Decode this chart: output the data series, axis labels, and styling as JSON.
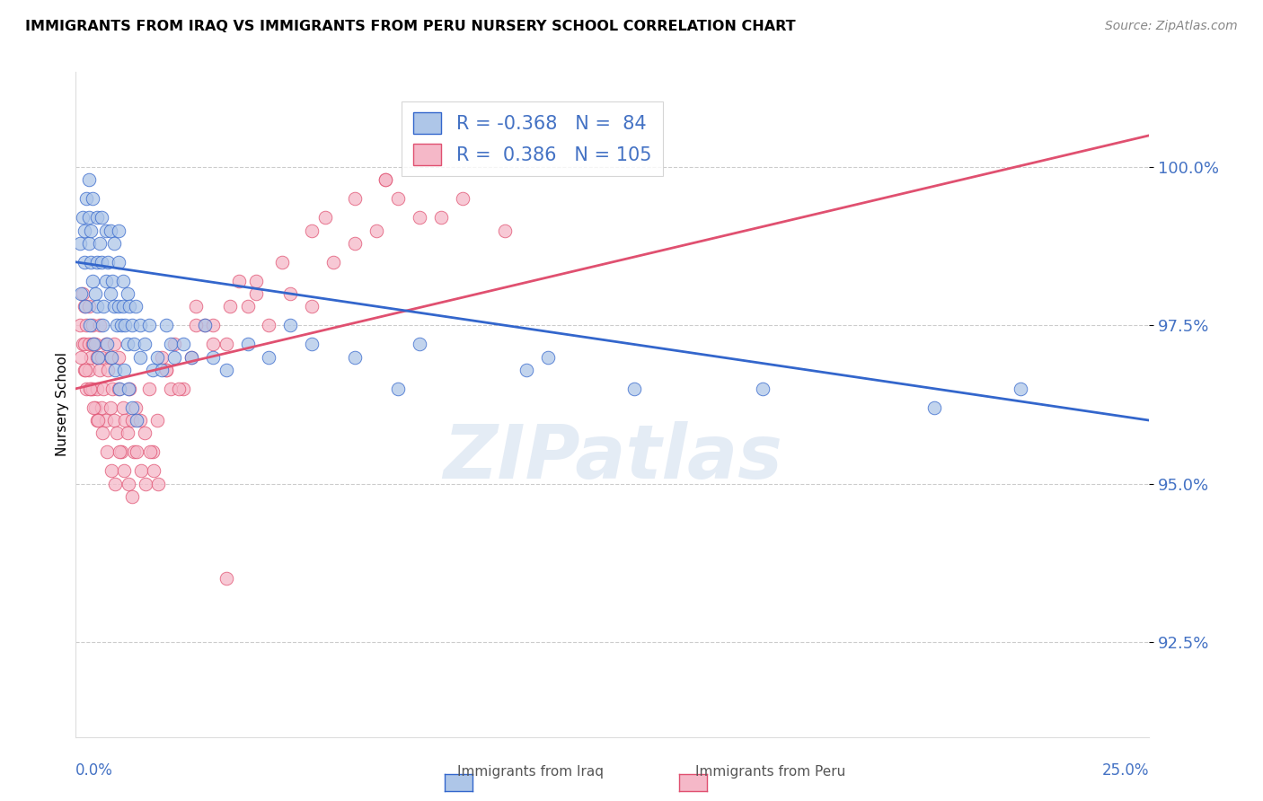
{
  "title": "IMMIGRANTS FROM IRAQ VS IMMIGRANTS FROM PERU NURSERY SCHOOL CORRELATION CHART",
  "source": "Source: ZipAtlas.com",
  "ylabel": "Nursery School",
  "ytick_labels": [
    "92.5%",
    "95.0%",
    "97.5%",
    "100.0%"
  ],
  "ytick_values": [
    92.5,
    95.0,
    97.5,
    100.0
  ],
  "xlim": [
    0.0,
    25.0
  ],
  "ylim": [
    91.0,
    101.5
  ],
  "iraq_R": -0.368,
  "iraq_N": 84,
  "peru_R": 0.386,
  "peru_N": 105,
  "iraq_color": "#aec6e8",
  "peru_color": "#f5b8c8",
  "iraq_line_color": "#3366cc",
  "peru_line_color": "#e05070",
  "watermark": "ZIPatlas",
  "iraq_trendline_x0": 0.0,
  "iraq_trendline_y0": 98.5,
  "iraq_trendline_x1": 25.0,
  "iraq_trendline_y1": 96.0,
  "peru_trendline_x0": 0.0,
  "peru_trendline_y0": 96.5,
  "peru_trendline_x1": 25.0,
  "peru_trendline_y1": 100.5,
  "iraq_x": [
    0.1,
    0.15,
    0.2,
    0.2,
    0.25,
    0.3,
    0.3,
    0.3,
    0.35,
    0.35,
    0.4,
    0.4,
    0.45,
    0.5,
    0.5,
    0.5,
    0.55,
    0.6,
    0.6,
    0.65,
    0.7,
    0.7,
    0.75,
    0.8,
    0.8,
    0.85,
    0.9,
    0.9,
    0.95,
    1.0,
    1.0,
    1.0,
    1.05,
    1.1,
    1.1,
    1.15,
    1.2,
    1.2,
    1.25,
    1.3,
    1.35,
    1.4,
    1.5,
    1.5,
    1.6,
    1.7,
    1.8,
    1.9,
    2.0,
    2.1,
    2.2,
    2.3,
    2.5,
    2.7,
    3.0,
    3.2,
    3.5,
    4.0,
    4.5,
    5.0,
    5.5,
    6.5,
    7.5,
    8.0,
    10.5,
    11.0,
    13.0,
    16.0,
    20.0,
    22.0,
    0.12,
    0.22,
    0.32,
    0.42,
    0.52,
    0.62,
    0.72,
    0.82,
    0.92,
    1.02,
    1.12,
    1.22,
    1.32,
    1.42
  ],
  "iraq_y": [
    98.8,
    99.2,
    99.0,
    98.5,
    99.5,
    99.2,
    98.8,
    99.8,
    98.5,
    99.0,
    98.2,
    99.5,
    98.0,
    99.2,
    98.5,
    97.8,
    98.8,
    98.5,
    99.2,
    97.8,
    99.0,
    98.2,
    98.5,
    98.0,
    99.0,
    98.2,
    97.8,
    98.8,
    97.5,
    98.5,
    97.8,
    99.0,
    97.5,
    98.2,
    97.8,
    97.5,
    98.0,
    97.2,
    97.8,
    97.5,
    97.2,
    97.8,
    97.5,
    97.0,
    97.2,
    97.5,
    96.8,
    97.0,
    96.8,
    97.5,
    97.2,
    97.0,
    97.2,
    97.0,
    97.5,
    97.0,
    96.8,
    97.2,
    97.0,
    97.5,
    97.2,
    97.0,
    96.5,
    97.2,
    96.8,
    97.0,
    96.5,
    96.5,
    96.2,
    96.5,
    98.0,
    97.8,
    97.5,
    97.2,
    97.0,
    97.5,
    97.2,
    97.0,
    96.8,
    96.5,
    96.8,
    96.5,
    96.2,
    96.0
  ],
  "peru_x": [
    0.1,
    0.15,
    0.15,
    0.2,
    0.2,
    0.2,
    0.25,
    0.25,
    0.3,
    0.3,
    0.3,
    0.35,
    0.35,
    0.4,
    0.4,
    0.4,
    0.45,
    0.45,
    0.5,
    0.5,
    0.5,
    0.55,
    0.55,
    0.6,
    0.6,
    0.65,
    0.7,
    0.7,
    0.75,
    0.8,
    0.8,
    0.85,
    0.9,
    0.9,
    0.95,
    1.0,
    1.0,
    1.05,
    1.1,
    1.15,
    1.2,
    1.25,
    1.3,
    1.35,
    1.4,
    1.5,
    1.6,
    1.7,
    1.8,
    1.9,
    2.0,
    2.1,
    2.2,
    2.3,
    2.5,
    2.7,
    3.0,
    3.5,
    4.0,
    4.5,
    5.0,
    5.5,
    6.0,
    6.5,
    7.0,
    7.5,
    8.0,
    9.0,
    10.0,
    2.8,
    3.2,
    3.8,
    4.2,
    5.8,
    7.2,
    0.12,
    0.22,
    0.32,
    0.42,
    0.52,
    0.62,
    0.72,
    0.82,
    0.92,
    1.02,
    1.12,
    1.22,
    1.32,
    1.42,
    1.52,
    1.62,
    1.72,
    1.82,
    1.92,
    2.1,
    2.4,
    2.8,
    3.2,
    3.6,
    4.2,
    4.8,
    5.5,
    6.5,
    7.2,
    8.5
  ],
  "peru_y": [
    97.5,
    97.2,
    98.0,
    97.8,
    96.8,
    97.2,
    97.5,
    96.5,
    97.2,
    96.8,
    97.8,
    96.5,
    97.0,
    97.2,
    96.5,
    97.5,
    96.2,
    97.2,
    96.5,
    97.0,
    96.0,
    96.8,
    97.5,
    96.2,
    97.0,
    96.5,
    97.2,
    96.0,
    96.8,
    96.2,
    97.0,
    96.5,
    96.0,
    97.2,
    95.8,
    96.5,
    97.0,
    95.5,
    96.2,
    96.0,
    95.8,
    96.5,
    96.0,
    95.5,
    96.2,
    96.0,
    95.8,
    96.5,
    95.5,
    96.0,
    97.0,
    96.8,
    96.5,
    97.2,
    96.5,
    97.0,
    97.5,
    97.2,
    97.8,
    97.5,
    98.0,
    97.8,
    98.5,
    98.8,
    99.0,
    99.5,
    99.2,
    99.5,
    99.0,
    97.8,
    97.5,
    98.2,
    98.0,
    99.2,
    99.8,
    97.0,
    96.8,
    96.5,
    96.2,
    96.0,
    95.8,
    95.5,
    95.2,
    95.0,
    95.5,
    95.2,
    95.0,
    94.8,
    95.5,
    95.2,
    95.0,
    95.5,
    95.2,
    95.0,
    96.8,
    96.5,
    97.5,
    97.2,
    97.8,
    98.2,
    98.5,
    99.0,
    99.5,
    99.8,
    99.2
  ],
  "peru_outlier_x": [
    3.5
  ],
  "peru_outlier_y": [
    93.5
  ]
}
